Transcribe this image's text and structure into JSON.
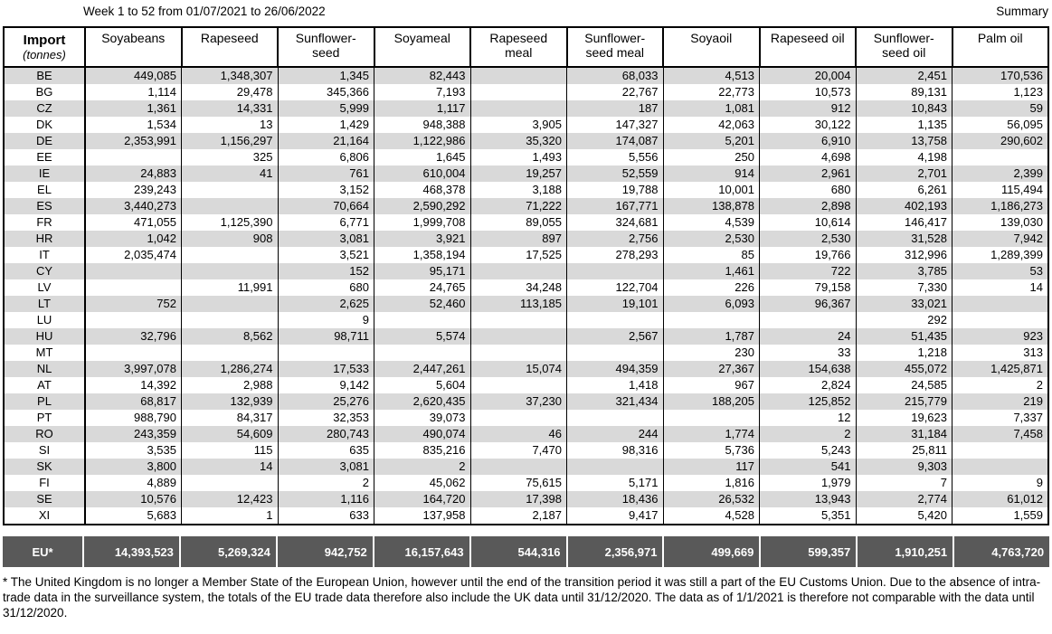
{
  "header": {
    "period": "Week 1 to 52 from 01/07/2021 to 26/06/2022",
    "summary_label": "Summary"
  },
  "table": {
    "corner_title": "Import",
    "corner_subtitle": "(tonnes)",
    "columns": [
      "Soyabeans",
      "Rapeseed",
      "Sunflower-seed",
      "Soyameal",
      "Rapeseed meal",
      "Sunflower-seed meal",
      "Soyaoil",
      "Rapeseed oil",
      "Sunflower-seed oil",
      "Palm oil"
    ],
    "rows": [
      {
        "country": "BE",
        "values": [
          "449,085",
          "1,348,307",
          "1,345",
          "82,443",
          "",
          "68,033",
          "4,513",
          "20,004",
          "2,451",
          "170,536"
        ]
      },
      {
        "country": "BG",
        "values": [
          "1,114",
          "29,478",
          "345,366",
          "7,193",
          "",
          "22,767",
          "22,773",
          "10,573",
          "89,131",
          "1,123"
        ]
      },
      {
        "country": "CZ",
        "values": [
          "1,361",
          "14,331",
          "5,999",
          "1,117",
          "",
          "187",
          "1,081",
          "912",
          "10,843",
          "59"
        ]
      },
      {
        "country": "DK",
        "values": [
          "1,534",
          "13",
          "1,429",
          "948,388",
          "3,905",
          "147,327",
          "42,063",
          "30,122",
          "1,135",
          "56,095"
        ]
      },
      {
        "country": "DE",
        "values": [
          "2,353,991",
          "1,156,297",
          "21,164",
          "1,122,986",
          "35,320",
          "174,087",
          "5,201",
          "6,910",
          "13,758",
          "290,602"
        ]
      },
      {
        "country": "EE",
        "values": [
          "",
          "325",
          "6,806",
          "1,645",
          "1,493",
          "5,556",
          "250",
          "4,698",
          "4,198",
          ""
        ]
      },
      {
        "country": "IE",
        "values": [
          "24,883",
          "41",
          "761",
          "610,004",
          "19,257",
          "52,559",
          "914",
          "2,961",
          "2,701",
          "2,399"
        ]
      },
      {
        "country": "EL",
        "values": [
          "239,243",
          "",
          "3,152",
          "468,378",
          "3,188",
          "19,788",
          "10,001",
          "680",
          "6,261",
          "115,494"
        ]
      },
      {
        "country": "ES",
        "values": [
          "3,440,273",
          "",
          "70,664",
          "2,590,292",
          "71,222",
          "167,771",
          "138,878",
          "2,898",
          "402,193",
          "1,186,273"
        ]
      },
      {
        "country": "FR",
        "values": [
          "471,055",
          "1,125,390",
          "6,771",
          "1,999,708",
          "89,055",
          "324,681",
          "4,539",
          "10,614",
          "146,417",
          "139,030"
        ]
      },
      {
        "country": "HR",
        "values": [
          "1,042",
          "908",
          "3,081",
          "3,921",
          "897",
          "2,756",
          "2,530",
          "2,530",
          "31,528",
          "7,942"
        ]
      },
      {
        "country": "IT",
        "values": [
          "2,035,474",
          "",
          "3,521",
          "1,358,194",
          "17,525",
          "278,293",
          "85",
          "19,766",
          "312,996",
          "1,289,399"
        ]
      },
      {
        "country": "CY",
        "values": [
          "",
          "",
          "152",
          "95,171",
          "",
          "",
          "1,461",
          "722",
          "3,785",
          "53"
        ]
      },
      {
        "country": "LV",
        "values": [
          "",
          "11,991",
          "680",
          "24,765",
          "34,248",
          "122,704",
          "226",
          "79,158",
          "7,330",
          "14"
        ]
      },
      {
        "country": "LT",
        "values": [
          "752",
          "",
          "2,625",
          "52,460",
          "113,185",
          "19,101",
          "6,093",
          "96,367",
          "33,021",
          ""
        ]
      },
      {
        "country": "LU",
        "values": [
          "",
          "",
          "9",
          "",
          "",
          "",
          "",
          "",
          "292",
          ""
        ]
      },
      {
        "country": "HU",
        "values": [
          "32,796",
          "8,562",
          "98,711",
          "5,574",
          "",
          "2,567",
          "1,787",
          "24",
          "51,435",
          "923"
        ]
      },
      {
        "country": "MT",
        "values": [
          "",
          "",
          "",
          "",
          "",
          "",
          "230",
          "33",
          "1,218",
          "313"
        ]
      },
      {
        "country": "NL",
        "values": [
          "3,997,078",
          "1,286,274",
          "17,533",
          "2,447,261",
          "15,074",
          "494,359",
          "27,367",
          "154,638",
          "455,072",
          "1,425,871"
        ]
      },
      {
        "country": "AT",
        "values": [
          "14,392",
          "2,988",
          "9,142",
          "5,604",
          "",
          "1,418",
          "967",
          "2,824",
          "24,585",
          "2"
        ]
      },
      {
        "country": "PL",
        "values": [
          "68,817",
          "132,939",
          "25,276",
          "2,620,435",
          "37,230",
          "321,434",
          "188,205",
          "125,852",
          "215,779",
          "219"
        ]
      },
      {
        "country": "PT",
        "values": [
          "988,790",
          "84,317",
          "32,353",
          "39,073",
          "",
          "",
          "",
          "12",
          "19,623",
          "7,337"
        ]
      },
      {
        "country": "RO",
        "values": [
          "243,359",
          "54,609",
          "280,743",
          "490,074",
          "46",
          "244",
          "1,774",
          "2",
          "31,184",
          "7,458"
        ]
      },
      {
        "country": "SI",
        "values": [
          "3,535",
          "115",
          "635",
          "835,216",
          "7,470",
          "98,316",
          "5,736",
          "5,243",
          "25,811",
          ""
        ]
      },
      {
        "country": "SK",
        "values": [
          "3,800",
          "14",
          "3,081",
          "2",
          "",
          "",
          "117",
          "541",
          "9,303",
          ""
        ]
      },
      {
        "country": "FI",
        "values": [
          "4,889",
          "",
          "2",
          "45,062",
          "75,615",
          "5,171",
          "1,816",
          "1,979",
          "7",
          "9"
        ]
      },
      {
        "country": "SE",
        "values": [
          "10,576",
          "12,423",
          "1,116",
          "164,720",
          "17,398",
          "18,436",
          "26,532",
          "13,943",
          "2,774",
          "61,012"
        ]
      },
      {
        "country": "XI",
        "values": [
          "5,683",
          "1",
          "633",
          "137,958",
          "2,187",
          "9,417",
          "4,528",
          "5,351",
          "5,420",
          "1,559"
        ]
      }
    ],
    "total_label": "EU*",
    "total_values": [
      "14,393,523",
      "5,269,324",
      "942,752",
      "16,157,643",
      "544,316",
      "2,356,971",
      "499,669",
      "599,357",
      "1,910,251",
      "4,763,720"
    ]
  },
  "footnote": "* The United Kingdom is no longer a Member State of the European Union, however until the end of the transition period it was still a part of the EU Customs Union. Due to the absence of intra-trade data in the surveillance system, the totals of the EU trade data therefore also include the UK data until 31/12/2020. The data as of 1/1/2021 is therefore not comparable with the data until 31/12/2020.",
  "colors": {
    "stripe": "#d9d9d9",
    "total_bg": "#595959",
    "border": "#000000"
  }
}
